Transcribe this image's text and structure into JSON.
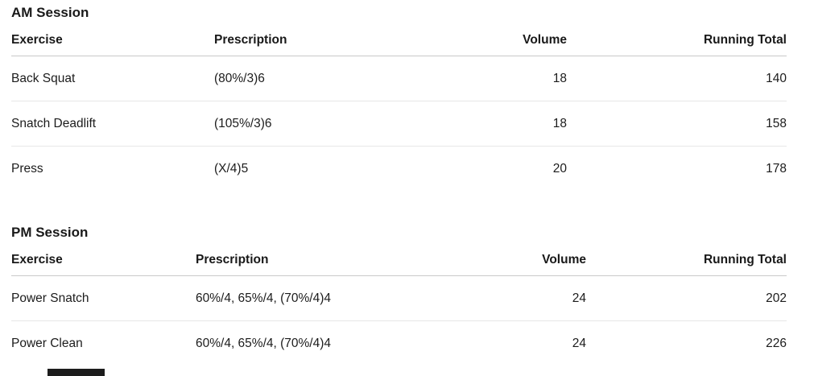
{
  "sessions": [
    {
      "title": "AM Session",
      "columns": [
        "Exercise",
        "Prescription",
        "Volume",
        "Running Total"
      ],
      "rows": [
        {
          "exercise": "Back Squat",
          "prescription": "(80%/3)6",
          "volume": "18",
          "running_total": "140"
        },
        {
          "exercise": "Snatch Deadlift",
          "prescription": "(105%/3)6",
          "volume": "18",
          "running_total": "158"
        },
        {
          "exercise": "Press",
          "prescription": "(X/4)5",
          "volume": "20",
          "running_total": "178"
        }
      ]
    },
    {
      "title": "PM Session",
      "columns": [
        "Exercise",
        "Prescription",
        "Volume",
        "Running Total"
      ],
      "rows": [
        {
          "exercise": "Power Snatch",
          "prescription": "60%/4, 65%/4, (70%/4)4",
          "volume": "24",
          "running_total": "202"
        },
        {
          "exercise": "Power Clean",
          "prescription": "60%/4, 65%/4, (70%/4)4",
          "volume": "24",
          "running_total": "226"
        }
      ]
    }
  ],
  "colors": {
    "background": "#ffffff",
    "text": "#1c1c1c",
    "header_rule": "#c9c9c9",
    "row_rule": "#e7e7e7"
  }
}
